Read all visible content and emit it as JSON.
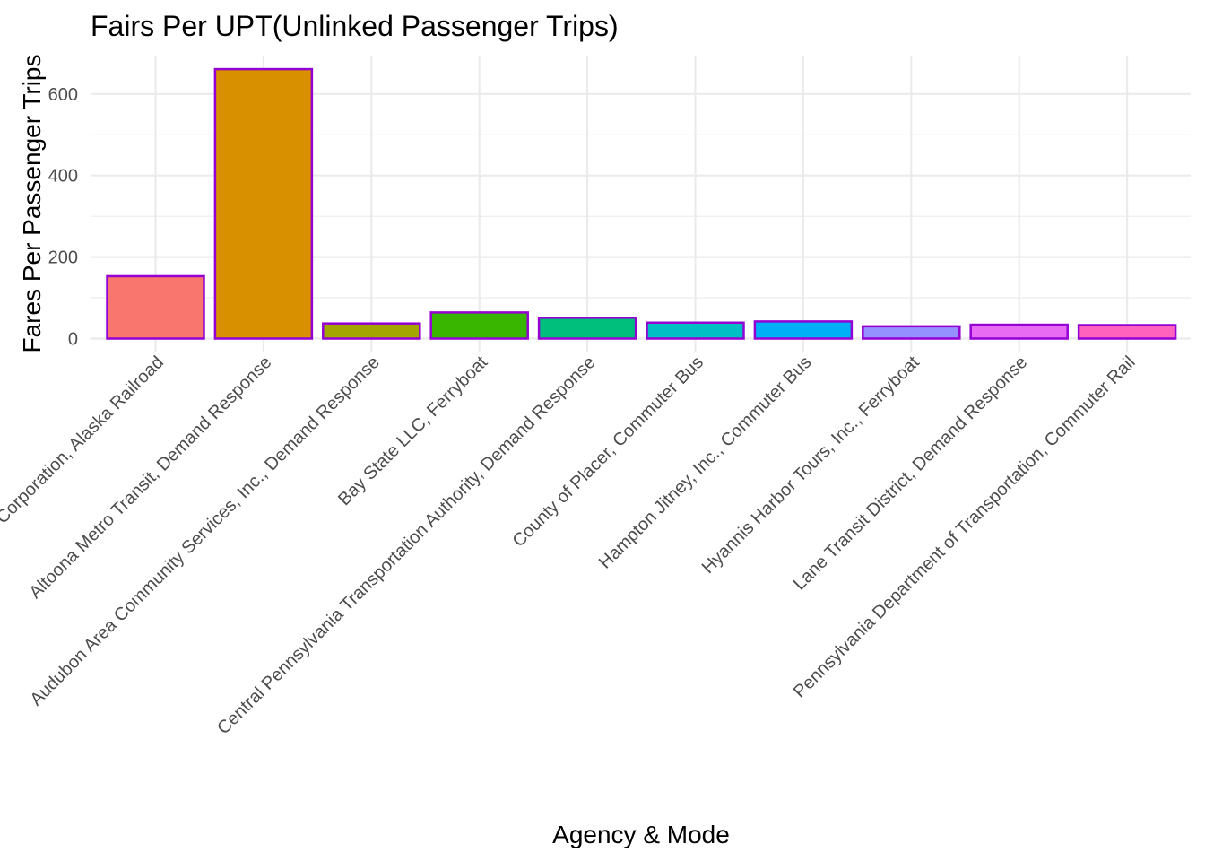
{
  "chart_data": {
    "type": "bar",
    "title": "Fairs Per UPT(Unlinked Passenger Trips)",
    "xlabel": "Agency & Mode",
    "ylabel": "Fares Per Passenger Trips",
    "ylim": [
      0,
      700
    ],
    "yticks": [
      0,
      200,
      400,
      600
    ],
    "grid": true,
    "legend": "none",
    "bar_outline_color": "#9400D3",
    "categories": [
      "Alaska Railroad Corporation, Alaska Railroad",
      "Altoona Metro Transit, Demand Response",
      "Audubon Area Community Services, Inc., Demand Response",
      "Bay State LLC, Ferryboat",
      "Central Pennsylvania Transportation Authority, Demand Response",
      "County of Placer, Commuter Bus",
      "Hampton Jitney, Inc., Commuter Bus",
      "Hyannis Harbor Tours, Inc., Ferryboat",
      "Lane Transit District, Demand Response",
      "Pennsylvania Department of Transportation, Commuter Rail"
    ],
    "values": [
      153,
      661,
      37,
      64,
      51,
      39,
      42,
      30,
      34,
      33
    ],
    "colors": [
      "#F8766D",
      "#D89000",
      "#A3A500",
      "#39B600",
      "#00BF7D",
      "#00BFC4",
      "#00B0F6",
      "#9590FF",
      "#E76BF3",
      "#FF62BC"
    ]
  }
}
